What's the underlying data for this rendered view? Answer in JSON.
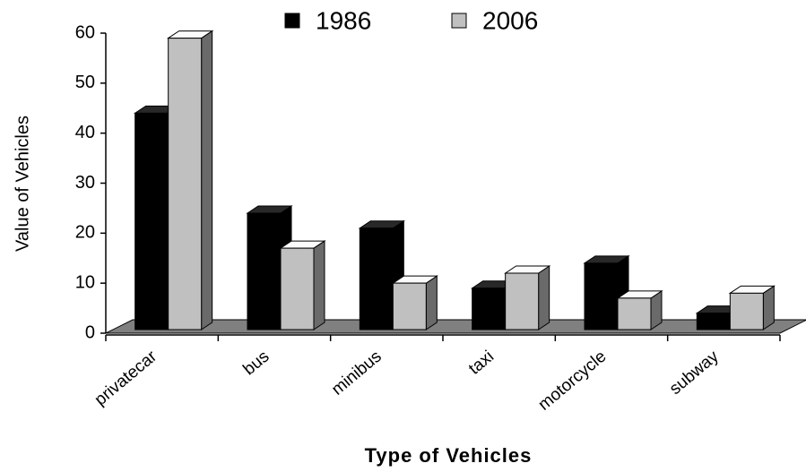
{
  "chart_data": {
    "type": "bar3d",
    "x_label": "Type of Vehicles",
    "y_label": "Value of Vehicles",
    "categories": [
      "privatecar",
      "bus",
      "minibus",
      "taxi",
      "motorcycle",
      "subway"
    ],
    "series": [
      {
        "name": "1986",
        "color": "#000000",
        "values": [
          44,
          24,
          21,
          9,
          14,
          4
        ]
      },
      {
        "name": "2006",
        "color": "#c0c0c0",
        "values": [
          59,
          17,
          10,
          12,
          7,
          8
        ]
      }
    ],
    "ylim": [
      0,
      60
    ],
    "yticks": [
      0,
      10,
      20,
      30,
      40,
      50,
      60
    ],
    "legend": "top"
  }
}
